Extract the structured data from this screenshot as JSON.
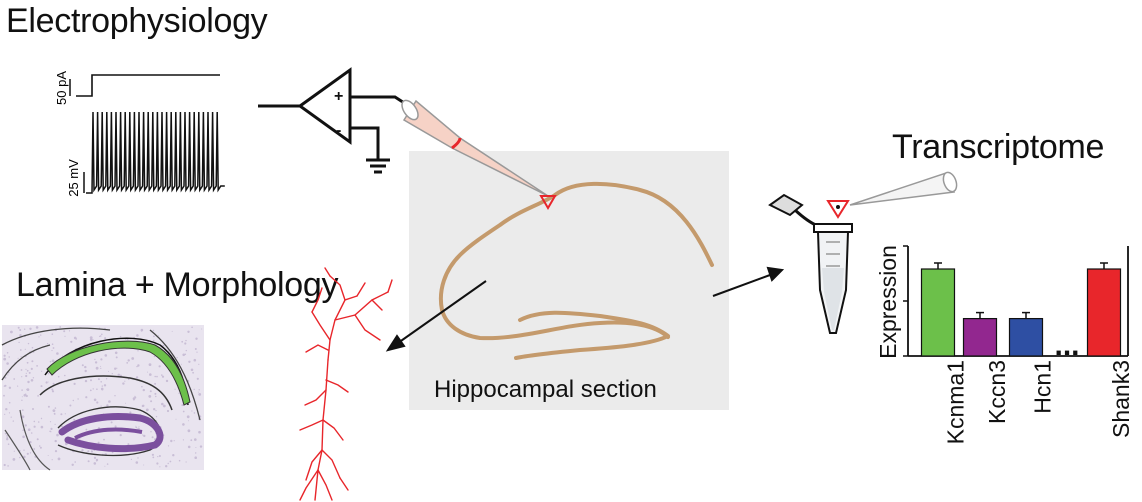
{
  "headings": {
    "electrophysiology": "Electrophysiology",
    "transcriptome": "Transcriptome",
    "lamina_morphology": "Lamina + Morphology"
  },
  "trace_labels": {
    "current": "50 pA",
    "voltage": "25 mV"
  },
  "amp_signs": {
    "plus": "+",
    "minus": "-"
  },
  "section_label": "Hippocampal section",
  "chart_data": {
    "type": "bar",
    "ylabel": "Expression",
    "categories": [
      "Kcnma1",
      "Kccn3",
      "Hcn1",
      "Shank3"
    ],
    "values": [
      1.0,
      0.43,
      0.43,
      1.0
    ],
    "ellipsis": "...",
    "colors": [
      "#6cc04a",
      "#92278f",
      "#2e4fa3",
      "#e8262b"
    ]
  },
  "colors": {
    "tissue": "#c49a6c",
    "section_bg": "#ebebeb",
    "neuron": "#e8262b",
    "ca1_layer": "#6cc04a",
    "dentate": "#7b4f9e"
  }
}
